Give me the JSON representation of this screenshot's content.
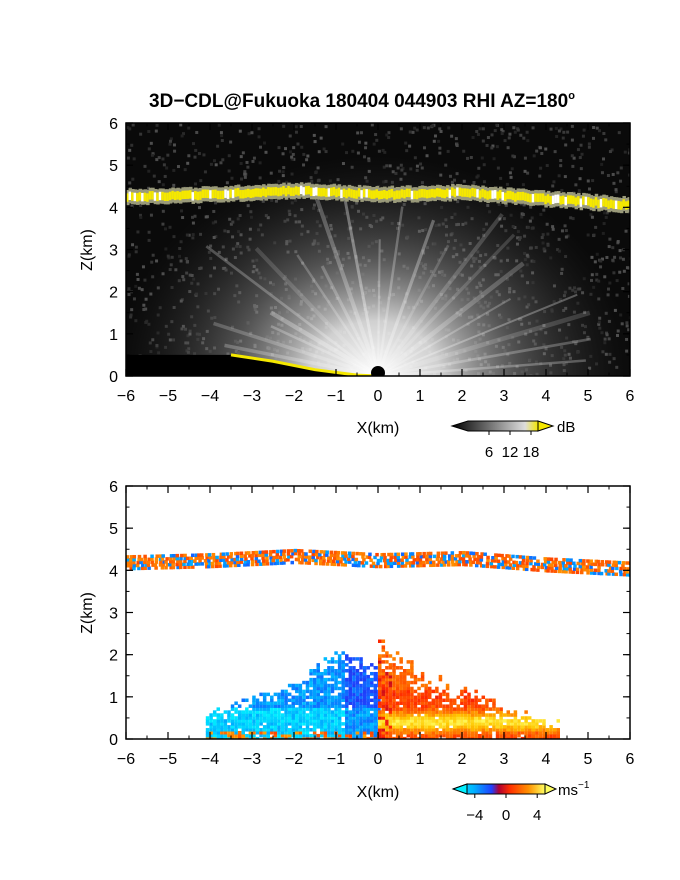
{
  "title": "3D−CDL@Fukuoka 180404 044903 RHI AZ=180",
  "title_degree": "o",
  "chart_data": [
    {
      "type": "heatmap",
      "variable": "reflectivity",
      "xlabel": "X(km)",
      "ylabel": "Z(km)",
      "xlim": [
        -6,
        6
      ],
      "ylim": [
        0,
        6
      ],
      "x_ticks": [
        -6,
        -5,
        -4,
        -3,
        -2,
        -1,
        0,
        1,
        2,
        3,
        4,
        5,
        6
      ],
      "y_ticks": [
        0,
        1,
        2,
        3,
        4,
        5,
        6
      ],
      "colorbar": {
        "unit": "dB",
        "ticks": [
          6,
          12,
          18
        ],
        "range": [
          0,
          20
        ]
      },
      "colors": {
        "background": "#000000",
        "low": "#555555",
        "high": "#ffffff",
        "over": "#f5e800"
      },
      "features": {
        "cloud_base_layer": {
          "x": [
            -6,
            -4,
            -2,
            0,
            2,
            4,
            6
          ],
          "z": [
            4.25,
            4.3,
            4.4,
            4.3,
            4.35,
            4.2,
            4.05
          ],
          "value_db": 20
        },
        "ground_clutter_edge": {
          "x": [
            -3.5,
            -2.5,
            -1.5,
            -0.5,
            0
          ],
          "z": [
            0.5,
            0.35,
            0.15,
            0.02,
            0
          ]
        }
      }
    },
    {
      "type": "heatmap",
      "variable": "doppler_velocity",
      "xlabel": "X(km)",
      "ylabel": "Z(km)",
      "xlim": [
        -6,
        6
      ],
      "ylim": [
        0,
        6
      ],
      "x_ticks": [
        -6,
        -5,
        -4,
        -3,
        -2,
        -1,
        0,
        1,
        2,
        3,
        4,
        5,
        6
      ],
      "y_ticks": [
        0,
        1,
        2,
        3,
        4,
        5,
        6
      ],
      "colorbar": {
        "unit": "ms",
        "unit_exponent": "−1",
        "ticks": [
          "−4",
          "0",
          "4"
        ],
        "range": [
          -5,
          5
        ]
      },
      "colors": {
        "negative_strong": "#00c8ff",
        "negative": "#1e50ff",
        "zero": "#c80028",
        "positive": "#ff4000",
        "positive_strong": "#ffe000"
      },
      "features": {
        "cloud_base_layer": {
          "x": [
            -6,
            -4,
            -2,
            0,
            2,
            4,
            6
          ],
          "z": [
            4.25,
            4.3,
            4.4,
            4.3,
            4.35,
            4.2,
            4.1
          ]
        },
        "negative_region": {
          "x": [
            -4,
            -3,
            -2,
            -1,
            0
          ],
          "z_top": [
            0.7,
            1.1,
            1.4,
            2.2,
            1.8
          ],
          "velocity": -3
        },
        "positive_region": {
          "x": [
            0,
            1,
            2,
            3,
            4
          ],
          "z_top": [
            2.6,
            1.7,
            1.3,
            0.9,
            0.5
          ],
          "velocity": 3
        }
      }
    }
  ]
}
